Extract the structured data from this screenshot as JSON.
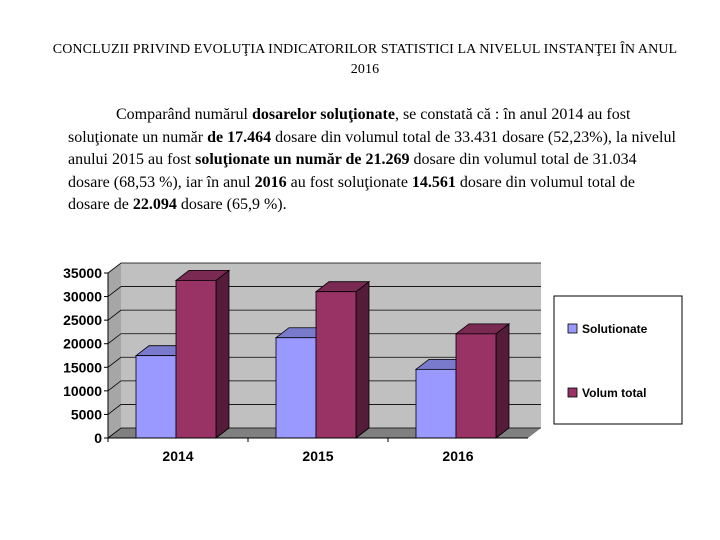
{
  "document": {
    "title": "CONCLUZII PRIVIND EVOLUŢIA INDICATORILOR STATISTICI LA NIVELUL INSTANŢEI ÎN ANUL 2016",
    "paragraph": [
      {
        "t": "Comparând numărul ",
        "b": false
      },
      {
        "t": "dosarelor soluţionate",
        "b": true
      },
      {
        "t": ", se constată că : în anul 2014 au fost soluţionate un număr ",
        "b": false
      },
      {
        "t": "de 17.464",
        "b": true
      },
      {
        "t": "  dosare din volumul total de 33.431 dosare (52,23%), la nivelul anului 2015 au fost ",
        "b": false
      },
      {
        "t": "soluţionate un număr de 21.269",
        "b": true
      },
      {
        "t": " dosare din volumul total de 31.034 dosare (68,53 %), iar în anul ",
        "b": false
      },
      {
        "t": "2016",
        "b": true
      },
      {
        "t": " au fost soluţionate ",
        "b": false
      },
      {
        "t": "14.561",
        "b": true
      },
      {
        "t": " dosare din volumul total de dosare  de ",
        "b": false
      },
      {
        "t": "22.094",
        "b": true
      },
      {
        "t": " dosare (65,9 %).",
        "b": false
      }
    ]
  },
  "chart_data": {
    "type": "bar",
    "style": "3d-clustered",
    "categories": [
      "2014",
      "2015",
      "2016"
    ],
    "series": [
      {
        "name": "Solutionate",
        "values": [
          17464,
          21269,
          14561
        ],
        "color": "#9999ff"
      },
      {
        "name": "Volum total",
        "values": [
          33431,
          31034,
          22094
        ],
        "color": "#993366"
      }
    ],
    "ylim": [
      0,
      35000
    ],
    "yticks": [
      "0",
      "5000",
      "10000",
      "15000",
      "20000",
      "25000",
      "30000",
      "35000"
    ],
    "grid": true,
    "legend": "right",
    "colors": {
      "wall": "#c0c0c0",
      "floor": "#808080",
      "grid": "#000000"
    }
  }
}
